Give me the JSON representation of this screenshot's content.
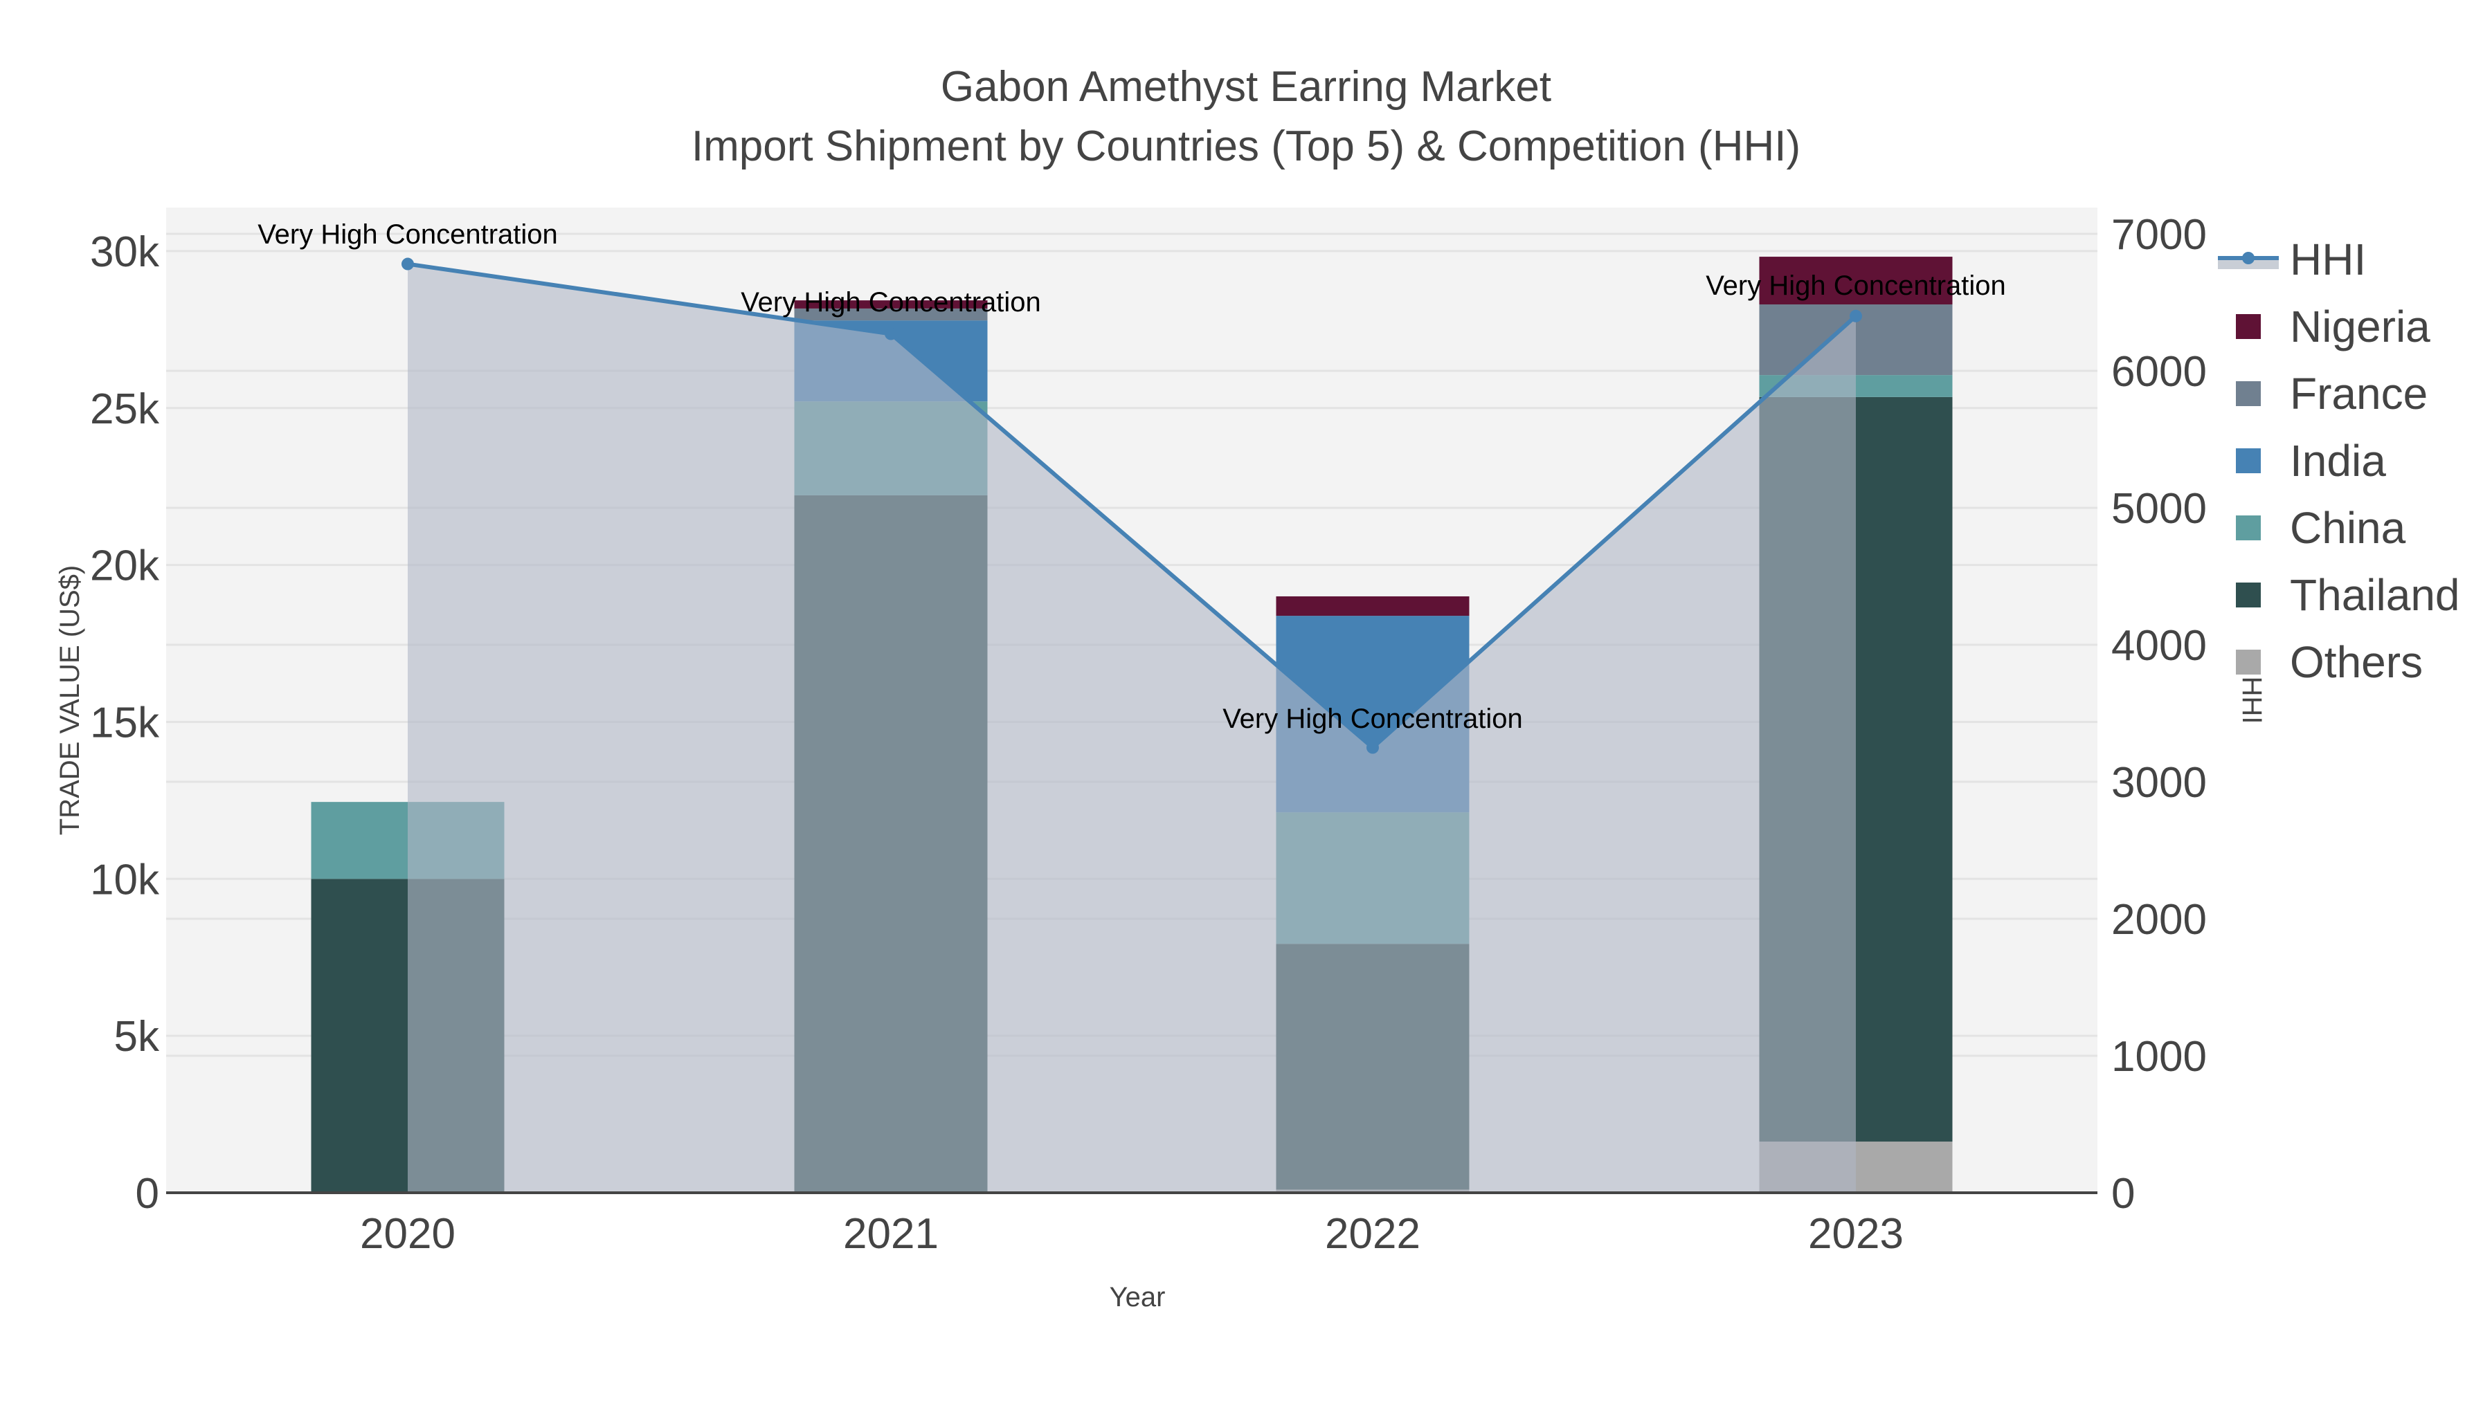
{
  "title": {
    "line1": "Gabon Amethyst Earring Market",
    "line2": "Import Shipment by Countries (Top 5) & Competition (HHI)"
  },
  "axes": {
    "x_label": "Year",
    "y_left_label": "TRADE VALUE (US$)",
    "y_right_label": "HHI",
    "y_left_ticks": [
      "0",
      "5k",
      "10k",
      "15k",
      "20k",
      "25k",
      "30k"
    ],
    "y_right_ticks": [
      "0",
      "1000",
      "2000",
      "3000",
      "4000",
      "5000",
      "6000",
      "7000"
    ]
  },
  "legend": [
    {
      "name": "HHI",
      "type": "line",
      "color": "#4682b4",
      "fill": "#c9ced6"
    },
    {
      "name": "Nigeria",
      "type": "bar",
      "color": "#5f1235"
    },
    {
      "name": "France",
      "type": "bar",
      "color": "#708090"
    },
    {
      "name": "India",
      "type": "bar",
      "color": "#4682b4"
    },
    {
      "name": "China",
      "type": "bar",
      "color": "#5f9ea0"
    },
    {
      "name": "Thailand",
      "type": "bar",
      "color": "#2f4f4f"
    },
    {
      "name": "Others",
      "type": "bar",
      "color": "#a9a9a9"
    }
  ],
  "annotations": [
    {
      "year": "2020",
      "text": "Very High Concentration"
    },
    {
      "year": "2021",
      "text": "Very High Concentration"
    },
    {
      "year": "2022",
      "text": "Very High Concentration"
    },
    {
      "year": "2023",
      "text": "Very High Concentration"
    }
  ],
  "chart_data": {
    "type": "bar",
    "subtype": "stacked bar with secondary-axis line/area",
    "title": "Gabon Amethyst Earring Market — Import Shipment by Countries (Top 5) & Competition (HHI)",
    "xlabel": "Year",
    "ylabel": "TRADE VALUE (US$)",
    "y2label": "HHI",
    "categories": [
      "2020",
      "2021",
      "2022",
      "2023"
    ],
    "ylim": [
      0,
      31200
    ],
    "y2lim": [
      0,
      7200
    ],
    "grid": true,
    "legend_position": "right",
    "series": [
      {
        "name": "Others",
        "axis": "y",
        "color": "#a9a9a9",
        "values": [
          0,
          0,
          100,
          1630
        ]
      },
      {
        "name": "Thailand",
        "axis": "y",
        "color": "#2f4f4f",
        "values": [
          10000,
          22220,
          7830,
          23720
        ]
      },
      {
        "name": "China",
        "axis": "y",
        "color": "#5f9ea0",
        "values": [
          2450,
          2990,
          4190,
          700
        ]
      },
      {
        "name": "India",
        "axis": "y",
        "color": "#4682b4",
        "values": [
          0,
          2580,
          6260,
          0
        ]
      },
      {
        "name": "France",
        "axis": "y",
        "color": "#708090",
        "values": [
          0,
          380,
          0,
          2250
        ]
      },
      {
        "name": "Nigeria",
        "axis": "y",
        "color": "#5f1235",
        "values": [
          0,
          260,
          620,
          1520
        ]
      },
      {
        "name": "HHI",
        "axis": "y2",
        "type": "line+area",
        "color": "#4682b4",
        "values": [
          6780,
          6270,
          3250,
          6400
        ]
      }
    ],
    "annotations": [
      "Very High Concentration",
      "Very High Concentration",
      "Very High Concentration",
      "Very High Concentration"
    ]
  }
}
